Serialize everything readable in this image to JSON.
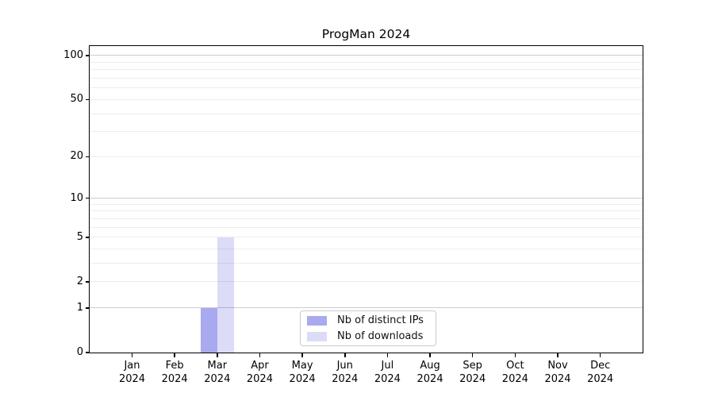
{
  "chart_data": {
    "type": "bar",
    "title": "ProgMan 2024",
    "x_axis": {
      "months": [
        "Jan",
        "Feb",
        "Mar",
        "Apr",
        "May",
        "Jun",
        "Jul",
        "Aug",
        "Sep",
        "Oct",
        "Nov",
        "Dec"
      ],
      "year": "2024"
    },
    "y_axis": {
      "scale": "log10(1+y)",
      "ticks": [
        0,
        1,
        2,
        5,
        10,
        20,
        50,
        100
      ],
      "major_gridlines": [
        1,
        10,
        100
      ],
      "minor_gridlines": [
        2,
        3,
        4,
        5,
        6,
        7,
        8,
        9,
        20,
        30,
        40,
        50,
        60,
        70,
        80,
        90
      ],
      "ylim": [
        0,
        116
      ],
      "grid": "horizontal only"
    },
    "series": [
      {
        "name": "Nb of distinct IPs",
        "color": "#a9a9f0",
        "values": [
          0,
          0,
          1,
          0,
          0,
          0,
          0,
          0,
          0,
          0,
          0,
          0
        ]
      },
      {
        "name": "Nb of downloads",
        "color": "#dcdcf8",
        "values": [
          0,
          0,
          5,
          0,
          0,
          0,
          0,
          0,
          0,
          0,
          0,
          0
        ]
      }
    ],
    "legend_position": "lower center"
  }
}
